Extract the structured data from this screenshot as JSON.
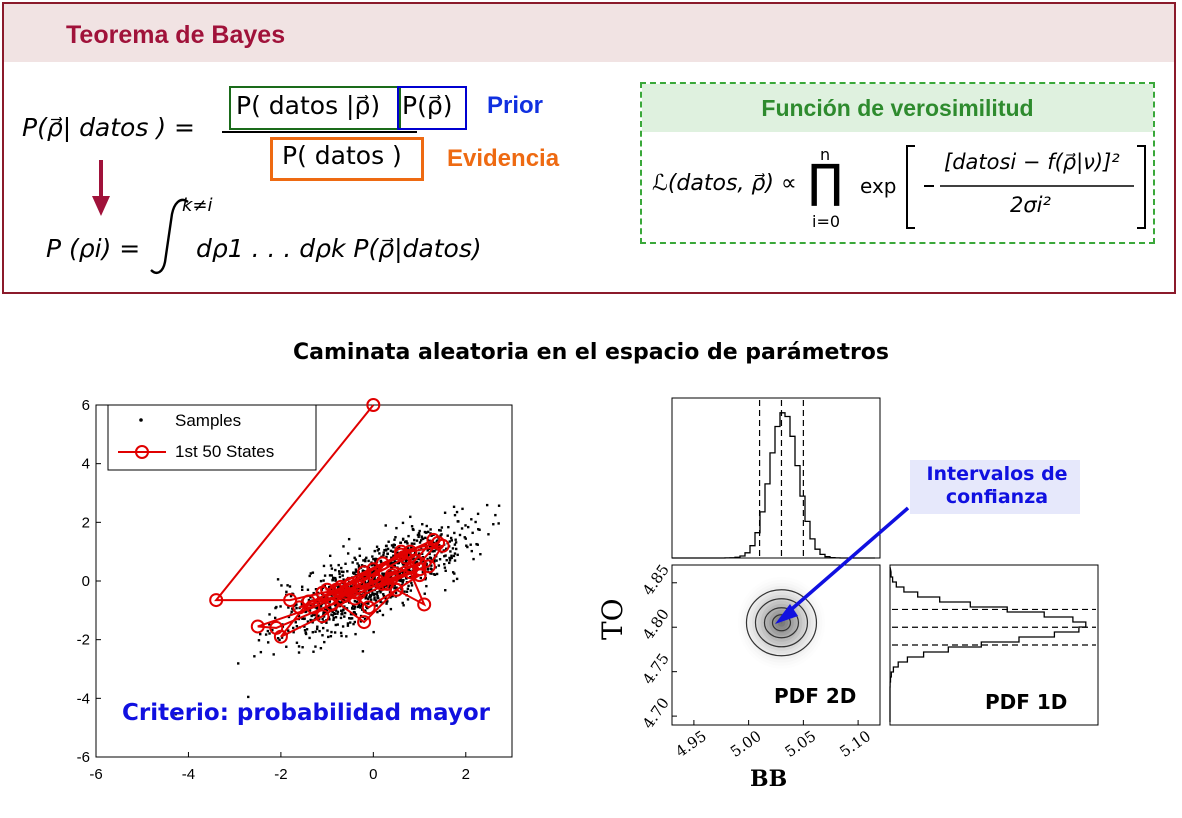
{
  "bayes": {
    "title": "Teorema de Bayes",
    "posterior": "P(ρ⃗| datos ) =",
    "likelihood_term": "P( datos |ρ⃗)",
    "prior_term": "P(ρ⃗)",
    "evidence_term": "P( datos )",
    "prior_label": "Prior",
    "evidence_label": "Evidencia",
    "marginal_lhs": "P (ρi) =",
    "marginal_upper": "k≠i",
    "marginal_rhs": "dρ1 . . . dρk  P(ρ⃗|datos)",
    "accent_color": "#8b1a2b"
  },
  "likelihood": {
    "title": "Función de verosimilitud",
    "lhs": "ℒ(datos, ρ⃗) ∝",
    "prod_upper": "n",
    "prod_lower": "i=0",
    "exp": "exp",
    "numerator": "[datosi − f(ρ⃗|ν)]²",
    "denominator": "2σi²"
  },
  "section_title": "Caminata aleatoria en el espacio de parámetros",
  "scatter": {
    "legend_samples": "Samples",
    "legend_states": "1st 50 States",
    "criterion": "Criterio: probabilidad mayor",
    "x_ticks": [
      "-6",
      "-4",
      "-2",
      "0",
      "2"
    ],
    "y_ticks": [
      "6",
      "4",
      "2",
      "0",
      "-2",
      "-4",
      "-6"
    ]
  },
  "corner": {
    "annotation": "Intervalos de confianza",
    "annotation_line1": "Intervalos de",
    "annotation_line2": "confianza",
    "pdf2d": "PDF 2D",
    "pdf1d": "PDF 1D",
    "xlabel": "BB",
    "ylabel": "TO",
    "x_ticks": [
      "4.95",
      "5.00",
      "5.05",
      "5.10"
    ],
    "y_ticks": [
      "4.85",
      "4.80",
      "4.75",
      "4.70"
    ]
  },
  "chart_data": [
    {
      "type": "scatter",
      "xlim": [
        -6,
        3
      ],
      "ylim": [
        -6,
        6
      ],
      "series": [
        {
          "name": "Samples",
          "color": "#000000"
        },
        {
          "name": "1st 50 States",
          "color": "#e00000",
          "x": [
            0,
            -3.4,
            -1.8,
            -1.1,
            -0.3,
            0.4,
            1.0,
            1.4,
            0.6,
            -0.2,
            -0.9,
            -2.1,
            -2.5,
            -1.3,
            -0.6,
            0.2,
            0.8,
            1.1,
            0.5,
            -0.2,
            -0.9,
            -1.6,
            -0.8,
            0.0,
            0.7,
            1.0,
            0.3,
            -0.4,
            -1.0,
            -0.2,
            0.6,
            1.3,
            0.9,
            0.1,
            -0.6,
            -1.4,
            -2.0,
            -1.1,
            -0.3,
            0.4,
            1.2,
            1.5,
            0.8,
            0.0,
            -0.7,
            -0.1,
            0.5,
            1.0,
            0.2,
            -0.5
          ],
          "y": [
            6,
            -0.65,
            -0.65,
            -0.4,
            -0.2,
            0.2,
            0.6,
            1.3,
            1.0,
            0.0,
            -0.8,
            -1.6,
            -1.55,
            -0.9,
            -0.4,
            -0.1,
            0.3,
            -0.8,
            -0.3,
            -1.4,
            -0.6,
            -0.9,
            -0.3,
            0.2,
            0.8,
            0.4,
            -0.1,
            -0.6,
            -0.3,
            0.3,
            0.9,
            1.4,
            0.7,
            0.0,
            -0.5,
            -0.7,
            -1.9,
            -1.2,
            -0.4,
            0.1,
            0.5,
            1.2,
            1.0,
            0.4,
            -0.2,
            -0.9,
            -0.3,
            0.2,
            0.6,
            -0.1
          ]
        }
      ]
    },
    {
      "type": "heatmap",
      "xlabel": "BB",
      "ylabel": "TO",
      "xlim": [
        4.93,
        5.12
      ],
      "ylim": [
        4.69,
        4.87
      ],
      "center": [
        5.03,
        4.805
      ],
      "top_histogram": {
        "variable": "BB",
        "intervals": [
          5.01,
          5.03,
          5.05
        ]
      },
      "right_histogram": {
        "variable": "TO",
        "intervals": [
          4.78,
          4.8,
          4.82
        ]
      }
    }
  ]
}
